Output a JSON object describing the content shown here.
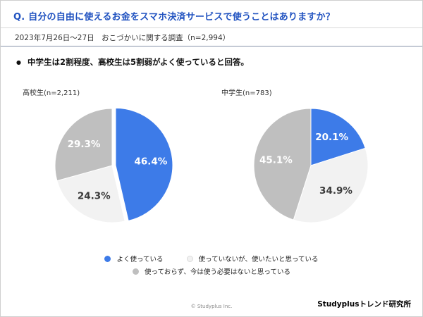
{
  "header": {
    "question": "Q. 自分の自由に使えるお金をスマホ決済サービスで使うことはありますか？",
    "meta": "2023年7月26日～27日　おこづかいに関する調査（n=2,994）",
    "accent_color": "#2052C0"
  },
  "summary": {
    "bullet": "●",
    "text": "中学生は2割程度、高校生は5割弱がよく使っていると回答。"
  },
  "chart_data": [
    {
      "type": "pie",
      "title": "高校生(n=2,211)",
      "labels": [
        "よく使っている",
        "使っていないが、使いたいと思っている",
        "使っておらず、今は使う必要はないと思っている"
      ],
      "values": [
        46.4,
        24.3,
        29.3
      ],
      "colors": [
        "#3D7BE8",
        "#F2F2F2",
        "#BFBFBF"
      ],
      "explode": [
        5,
        0,
        0
      ],
      "label_format": "percent",
      "legend_position": "bottom"
    },
    {
      "type": "pie",
      "title": "中学生(n=783)",
      "labels": [
        "よく使っている",
        "使っていないが、使いたいと思っている",
        "使っておらず、今は使う必要はないと思っている"
      ],
      "values": [
        20.1,
        34.9,
        45.1
      ],
      "colors": [
        "#3D7BE8",
        "#F2F2F2",
        "#BFBFBF"
      ],
      "explode": [
        0,
        0,
        0
      ],
      "label_format": "percent",
      "legend_position": "bottom"
    }
  ],
  "legend": [
    {
      "label": "よく使っている",
      "color": "#3D7BE8"
    },
    {
      "label": "使っていないが、使いたいと思っている",
      "color": "#F2F2F2"
    },
    {
      "label": "使っておらず、今は使う必要はないと思っている",
      "color": "#BFBFBF"
    }
  ],
  "footer": {
    "copyright": "© Studyplus Inc.",
    "brand": "Studyplusトレンド研究所"
  }
}
